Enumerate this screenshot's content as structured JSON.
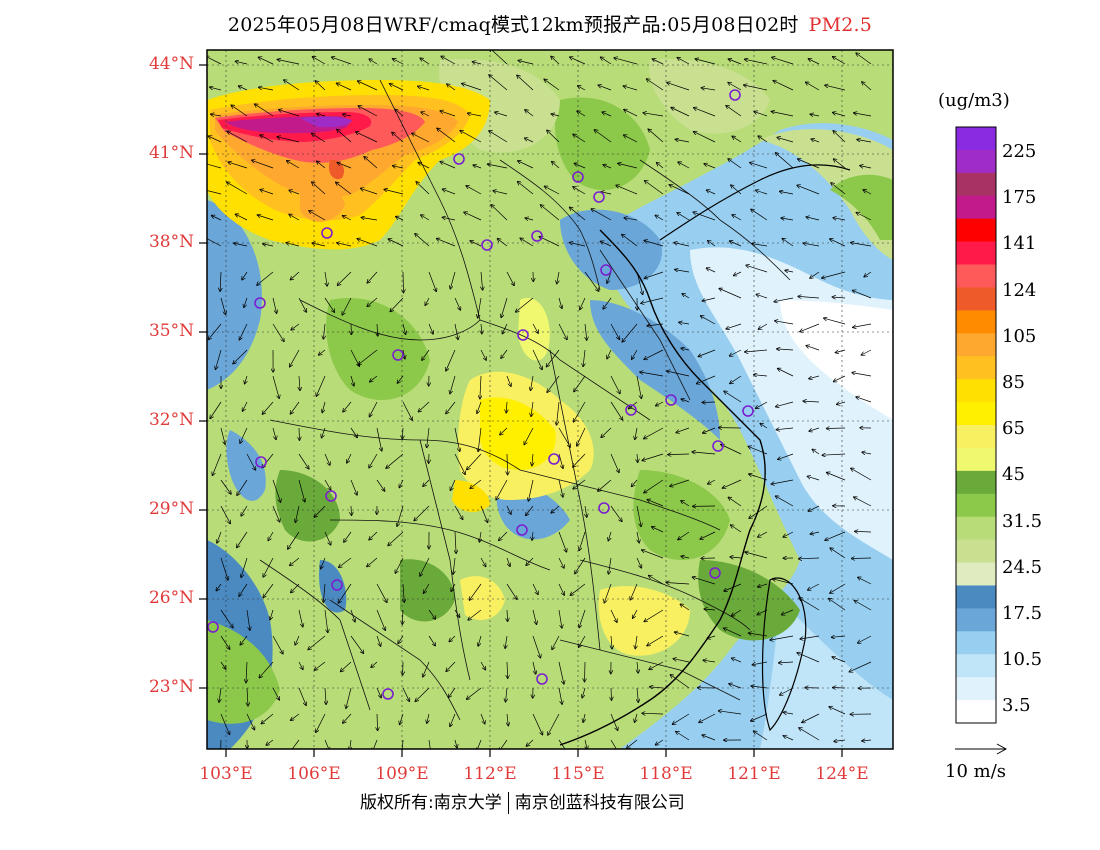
{
  "title": {
    "main": "2025年05月08日WRF/cmaq模式12km预报产品:05月08日02时",
    "pollutant": "PM2.5"
  },
  "axes": {
    "lat_labels": [
      "44°N",
      "41°N",
      "38°N",
      "35°N",
      "32°N",
      "29°N",
      "26°N",
      "23°N"
    ],
    "lon_labels": [
      "103°E",
      "106°E",
      "109°E",
      "112°E",
      "115°E",
      "118°E",
      "121°E",
      "124°E"
    ]
  },
  "colorbar": {
    "units": "(ug/m3)",
    "labels": [
      "225",
      "175",
      "141",
      "124",
      "105",
      "85",
      "65",
      "45",
      "31.5",
      "24.5",
      "17.5",
      "10.5",
      "3.5"
    ],
    "colors": [
      "#8a2be2",
      "#a02cc8",
      "#a83264",
      "#c21a8a",
      "#ff0000",
      "#ff1a4a",
      "#ff5a5a",
      "#ee5a2a",
      "#ff8c00",
      "#ffa830",
      "#ffc020",
      "#ffe000",
      "#fff000",
      "#f8f060",
      "#f0f870",
      "#6aaa3a",
      "#8cc84a",
      "#b8dc78",
      "#c8e090",
      "#e0ecc0",
      "#4a8ac0",
      "#6aa6d8",
      "#98cff0",
      "#c0e4f8",
      "#e0f2fc",
      "#ffffff"
    ]
  },
  "wind_scale": {
    "label": "10 m/s"
  },
  "footer": {
    "copyright": "版权所有:南京大学",
    "company": "南京创蓝科技有限公司"
  }
}
